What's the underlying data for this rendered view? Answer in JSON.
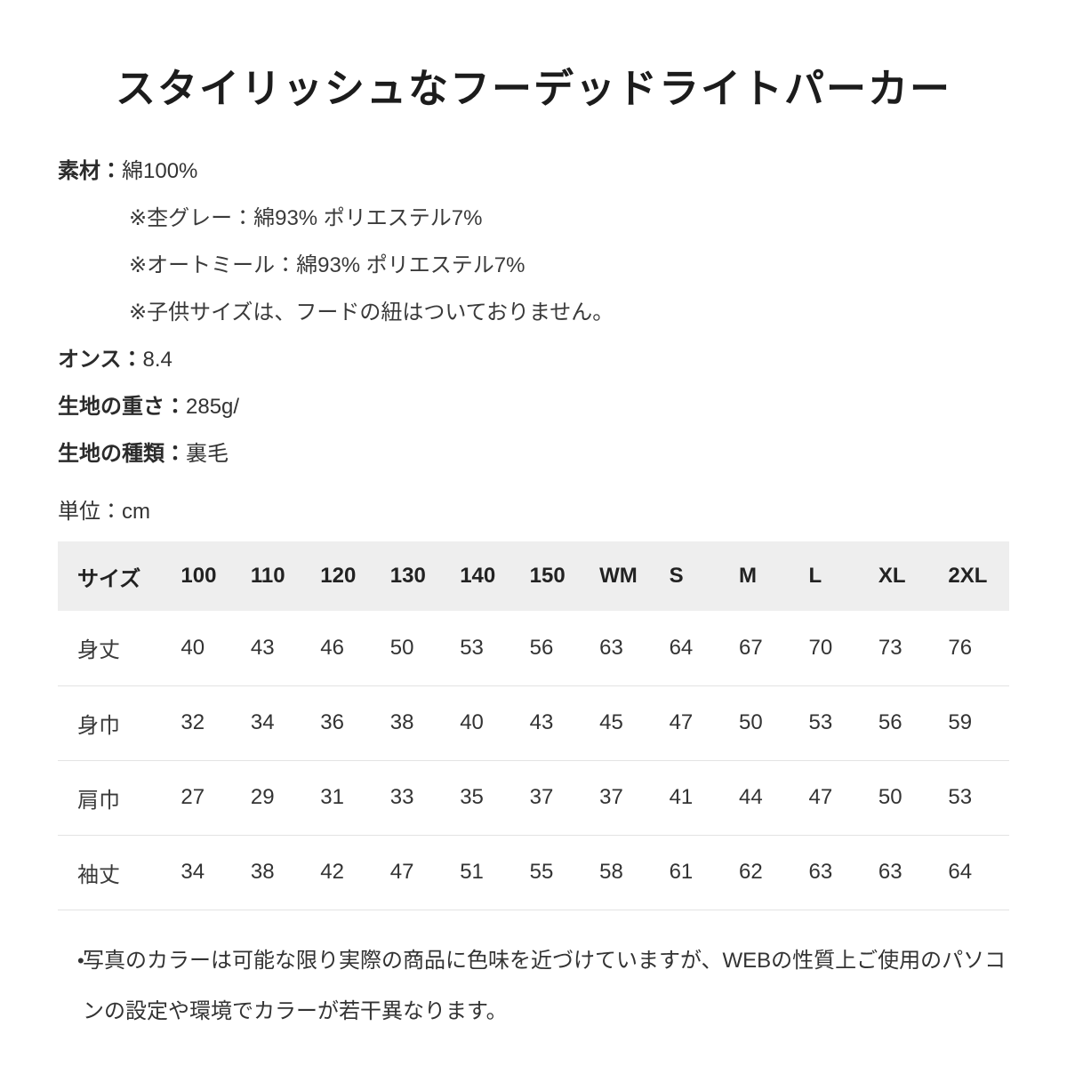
{
  "page_title": "スタイリッシュなフーデッドライトパーカー",
  "specs": {
    "material_label": "素材：",
    "material_value": "綿100%",
    "material_notes": [
      "※杢グレー：綿93% ポリエステル7%",
      "※オートミール：綿93% ポリエステル7%",
      "※子供サイズは、フードの紐はついておりません。"
    ],
    "ounce_label": "オンス：",
    "ounce_value": "8.4",
    "weight_label": "生地の重さ：",
    "weight_value": "285g/",
    "type_label": "生地の種類：",
    "type_value": "裏毛"
  },
  "unit": {
    "label": "単位：",
    "value": "cm"
  },
  "size_table": {
    "header_label": "サイズ",
    "columns": [
      "100",
      "110",
      "120",
      "130",
      "140",
      "150",
      "WM",
      "S",
      "M",
      "L",
      "XL",
      "2XL"
    ],
    "rows": [
      {
        "label": "身丈",
        "values": [
          40,
          43,
          46,
          50,
          53,
          56,
          63,
          64,
          67,
          70,
          73,
          76
        ]
      },
      {
        "label": "身巾",
        "values": [
          32,
          34,
          36,
          38,
          40,
          43,
          45,
          47,
          50,
          53,
          56,
          59
        ]
      },
      {
        "label": "肩巾",
        "values": [
          27,
          29,
          31,
          33,
          35,
          37,
          37,
          41,
          44,
          47,
          50,
          53
        ]
      },
      {
        "label": "袖丈",
        "values": [
          34,
          38,
          42,
          47,
          51,
          55,
          58,
          61,
          62,
          63,
          63,
          64
        ]
      }
    ]
  },
  "footnote": {
    "bullet": "•",
    "text": "写真のカラーは可能な限り実際の商品に色味を近づけていますが、WEBの性質上ご使用のパソコンの設定や環境でカラーが若干異なります。"
  },
  "colors": {
    "background": "#ffffff",
    "text": "#333333",
    "title": "#1c1c1c",
    "table_header_bg": "#eeeeee",
    "row_border": "#e3e3e3"
  }
}
